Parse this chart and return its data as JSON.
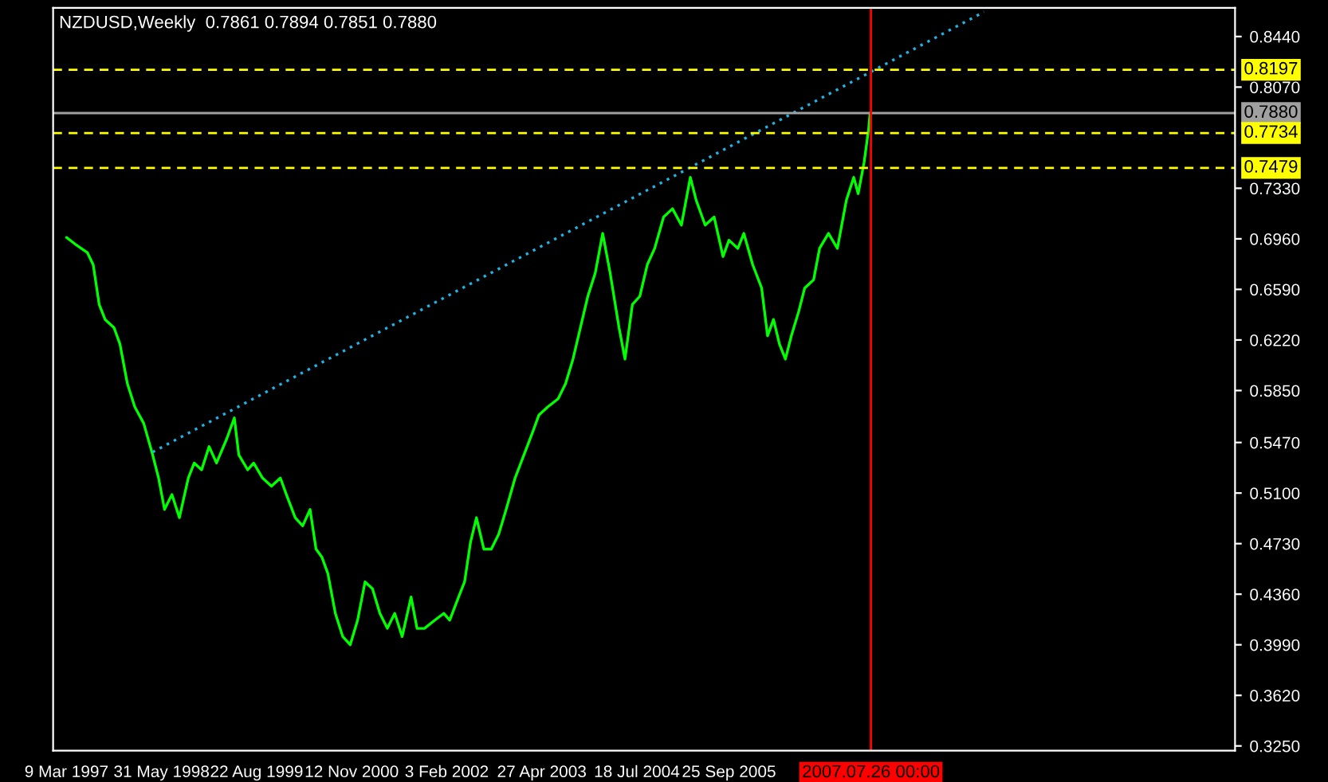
{
  "chart_data": {
    "type": "line",
    "title": "NZDUSD,Weekly  0.7861 0.7894 0.7851 0.7880",
    "legend": false,
    "grid": false,
    "marker": "none",
    "series": [
      {
        "color": "#00ff00",
        "line_style": "solid",
        "x": [
          "1997-03-09",
          "1997-04-20",
          "1997-06-15",
          "1997-07-13",
          "1997-08-10",
          "1997-09-07",
          "1997-10-19",
          "1997-11-16",
          "1997-12-21",
          "1998-01-25",
          "1998-03-08",
          "1998-04-19",
          "1998-05-17",
          "1998-06-14",
          "1998-07-19",
          "1998-08-23",
          "1998-10-04",
          "1998-11-01",
          "1998-12-06",
          "1999-01-10",
          "1999-02-14",
          "1999-04-04",
          "1999-05-09",
          "1999-05-30",
          "1999-07-11",
          "1999-08-08",
          "1999-09-19",
          "1999-10-31",
          "1999-12-12",
          "2000-01-09",
          "2000-02-20",
          "2000-03-26",
          "2000-04-30",
          "2000-05-28",
          "2000-06-25",
          "2000-07-23",
          "2000-08-27",
          "2000-10-01",
          "2000-11-05",
          "2000-12-10",
          "2001-01-14",
          "2001-02-18",
          "2001-03-25",
          "2001-04-29",
          "2001-06-03",
          "2001-07-08",
          "2001-08-19",
          "2001-09-16",
          "2001-10-21",
          "2001-12-09",
          "2002-01-20",
          "2002-02-17",
          "2002-03-31",
          "2002-04-28",
          "2002-05-26",
          "2002-06-23",
          "2002-07-28",
          "2002-09-01",
          "2002-10-06",
          "2002-11-10",
          "2002-12-22",
          "2003-02-02",
          "2003-03-16",
          "2003-04-13",
          "2003-05-25",
          "2003-07-13",
          "2003-08-17",
          "2003-09-21",
          "2003-10-26",
          "2003-11-30",
          "2004-01-04",
          "2004-02-08",
          "2004-03-14",
          "2004-04-25",
          "2004-05-23",
          "2004-06-27",
          "2004-08-01",
          "2004-09-05",
          "2004-10-10",
          "2004-11-21",
          "2005-01-02",
          "2005-02-13",
          "2005-03-27",
          "2005-04-24",
          "2005-06-05",
          "2005-07-17",
          "2005-08-28",
          "2005-09-25",
          "2005-11-06",
          "2005-12-04",
          "2006-01-15",
          "2006-02-26",
          "2006-03-26",
          "2006-04-23",
          "2006-05-21",
          "2006-06-18",
          "2006-07-16",
          "2006-08-20",
          "2006-09-17",
          "2006-10-29",
          "2006-11-26",
          "2007-01-07",
          "2007-02-18",
          "2007-04-01",
          "2007-05-06",
          "2007-05-27",
          "2007-06-24",
          "2007-07-15",
          "2007-07-22"
        ],
        "values": [
          0.697,
          0.692,
          0.686,
          0.677,
          0.648,
          0.637,
          0.631,
          0.619,
          0.59,
          0.573,
          0.561,
          0.538,
          0.521,
          0.498,
          0.509,
          0.492,
          0.521,
          0.532,
          0.527,
          0.544,
          0.532,
          0.55,
          0.565,
          0.538,
          0.527,
          0.532,
          0.521,
          0.515,
          0.521,
          0.509,
          0.492,
          0.486,
          0.498,
          0.469,
          0.463,
          0.451,
          0.422,
          0.405,
          0.399,
          0.417,
          0.445,
          0.44,
          0.422,
          0.411,
          0.422,
          0.405,
          0.434,
          0.411,
          0.411,
          0.417,
          0.422,
          0.417,
          0.434,
          0.445,
          0.474,
          0.492,
          0.469,
          0.469,
          0.48,
          0.498,
          0.521,
          0.538,
          0.555,
          0.567,
          0.573,
          0.579,
          0.59,
          0.608,
          0.631,
          0.654,
          0.671,
          0.7,
          0.671,
          0.631,
          0.608,
          0.648,
          0.654,
          0.677,
          0.689,
          0.712,
          0.718,
          0.706,
          0.741,
          0.724,
          0.706,
          0.712,
          0.683,
          0.695,
          0.689,
          0.7,
          0.677,
          0.66,
          0.625,
          0.637,
          0.619,
          0.608,
          0.625,
          0.643,
          0.66,
          0.666,
          0.689,
          0.7,
          0.689,
          0.724,
          0.741,
          0.729,
          0.752,
          0.776,
          0.788
        ]
      },
      {
        "color": "#1eb4e6",
        "line_style": "dotted",
        "x": [
          "1998-04-19",
          "2009-01-09"
        ],
        "values": [
          0.54,
          0.862
        ]
      }
    ],
    "xlim": [
      "1997-01-05",
      "2012-04-06"
    ],
    "xticks": [
      {
        "value": "1997-03-09",
        "label": "9 Mar 1997"
      },
      {
        "value": "1998-05-31",
        "label": "31 May 1998"
      },
      {
        "value": "1999-08-22",
        "label": "22 Aug 1999"
      },
      {
        "value": "2000-11-12",
        "label": "12 Nov 2000"
      },
      {
        "value": "2002-02-03",
        "label": "3 Feb 2002"
      },
      {
        "value": "2003-04-27",
        "label": "27 Apr 2003"
      },
      {
        "value": "2004-07-18",
        "label": "18 Jul 2004"
      },
      {
        "value": "2005-09-25",
        "label": "25 Sep 2005"
      }
    ],
    "ylim": [
      0.3215,
      0.865
    ],
    "yticks": [
      {
        "value": 0.844,
        "label": "0.8440"
      },
      {
        "value": 0.807,
        "label": "0.8070"
      },
      {
        "value": 0.733,
        "label": "0.7330"
      },
      {
        "value": 0.696,
        "label": "0.6960"
      },
      {
        "value": 0.659,
        "label": "0.6590"
      },
      {
        "value": 0.622,
        "label": "0.6220"
      },
      {
        "value": 0.585,
        "label": "0.5850"
      },
      {
        "value": 0.547,
        "label": "0.5470"
      },
      {
        "value": 0.51,
        "label": "0.5100"
      },
      {
        "value": 0.473,
        "label": "0.4730"
      },
      {
        "value": 0.436,
        "label": "0.4360"
      },
      {
        "value": 0.399,
        "label": "0.3990"
      },
      {
        "value": 0.362,
        "label": "0.3620"
      },
      {
        "value": 0.325,
        "label": "0.3250"
      }
    ],
    "ref_lines": [
      {
        "axis": "y",
        "value": 0.8197,
        "label": "0.8197",
        "color": "#ffff00",
        "line_style": "dashed"
      },
      {
        "axis": "y",
        "value": 0.788,
        "label": "0.7880",
        "color": "#a0a0a0",
        "line_style": "solid"
      },
      {
        "axis": "y",
        "value": 0.7734,
        "label": "0.7734",
        "color": "#ffff00",
        "line_style": "dashed"
      },
      {
        "axis": "y",
        "value": 0.7479,
        "label": "0.7479",
        "color": "#ffff00",
        "line_style": "dashed"
      },
      {
        "axis": "x",
        "value": "2007-07-26",
        "label": "2007.07.26 00:00",
        "color": "#ff0000",
        "line_style": "solid"
      }
    ]
  }
}
